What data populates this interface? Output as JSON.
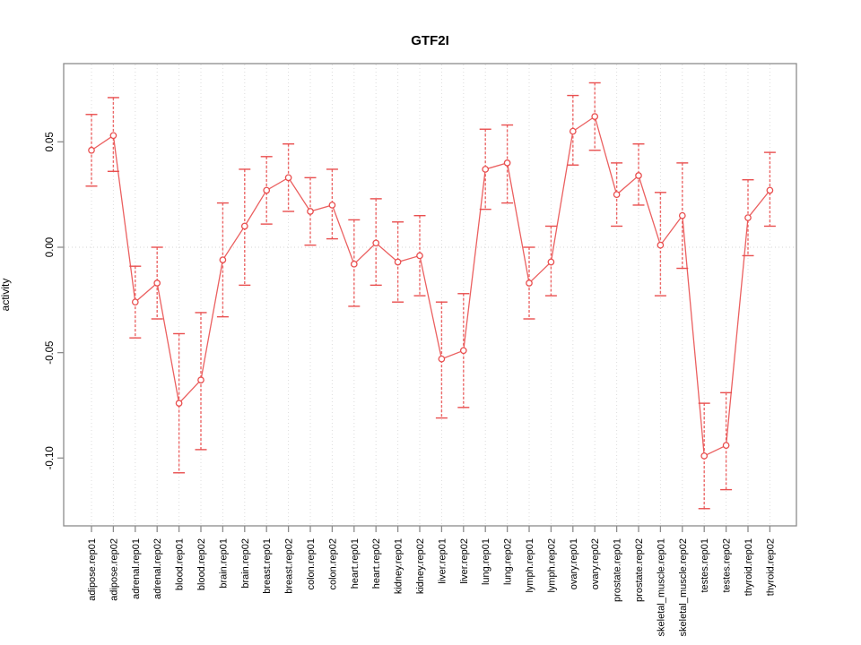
{
  "title": "GTF2I",
  "chart_data": {
    "type": "line",
    "title": "GTF2I",
    "xlabel": "",
    "ylabel": "activity",
    "legend": "none",
    "grid": "vertical dotted line per category; horizontal dotted line at y=0 only",
    "marker": "open-circle",
    "error_bars": true,
    "ylim": [
      -0.132,
      0.087
    ],
    "ytick_values": [
      0.05,
      0.0,
      -0.05,
      -0.1
    ],
    "ytick_labels": [
      "0.05",
      "0.00",
      "-0.05",
      "-0.10"
    ],
    "categories": [
      "adipose.rep01",
      "adipose.rep02",
      "adrenal.rep01",
      "adrenal.rep02",
      "blood.rep01",
      "blood.rep02",
      "brain.rep01",
      "brain.rep02",
      "breast.rep01",
      "breast.rep02",
      "colon.rep01",
      "colon.rep02",
      "heart.rep01",
      "heart.rep02",
      "kidney.rep01",
      "kidney.rep02",
      "liver.rep01",
      "liver.rep02",
      "lung.rep01",
      "lung.rep02",
      "lymph.rep01",
      "lymph.rep02",
      "ovary.rep01",
      "ovary.rep02",
      "prostate.rep01",
      "prostate.rep02",
      "skeletal_muscle.rep01",
      "skeletal_muscle.rep02",
      "testes.rep01",
      "testes.rep02",
      "thyroid.rep01",
      "thyroid.rep02"
    ],
    "series": [
      {
        "name": "activity",
        "values": [
          0.046,
          0.053,
          -0.026,
          -0.017,
          -0.074,
          -0.063,
          -0.006,
          0.01,
          0.027,
          0.033,
          0.017,
          0.02,
          -0.008,
          0.002,
          -0.007,
          -0.004,
          -0.053,
          -0.049,
          0.037,
          0.04,
          -0.017,
          -0.007,
          0.055,
          0.062,
          0.025,
          0.034,
          0.001,
          0.015,
          -0.099,
          -0.094,
          0.014,
          0.027
        ],
        "error_lower": [
          0.029,
          0.036,
          -0.043,
          -0.034,
          -0.107,
          -0.096,
          -0.033,
          -0.018,
          0.011,
          0.017,
          0.001,
          0.004,
          -0.028,
          -0.018,
          -0.026,
          -0.023,
          -0.081,
          -0.076,
          0.018,
          0.021,
          -0.034,
          -0.023,
          0.039,
          0.046,
          0.01,
          0.02,
          -0.023,
          -0.01,
          -0.124,
          -0.115,
          -0.004,
          0.01
        ],
        "error_upper": [
          0.063,
          0.071,
          -0.009,
          0.0,
          -0.041,
          -0.031,
          0.021,
          0.037,
          0.043,
          0.049,
          0.033,
          0.037,
          0.013,
          0.023,
          0.012,
          0.015,
          -0.026,
          -0.022,
          0.056,
          0.058,
          0.0,
          0.01,
          0.072,
          0.078,
          0.04,
          0.049,
          0.026,
          0.04,
          -0.074,
          -0.069,
          0.032,
          0.045
        ]
      }
    ],
    "colors": {
      "series": "#e94f4f",
      "grid": "#dcdcdc",
      "zero_line": "#d4d4d4",
      "axis": "#8c8c8c",
      "text": "#000000",
      "background": "#ffffff"
    }
  }
}
